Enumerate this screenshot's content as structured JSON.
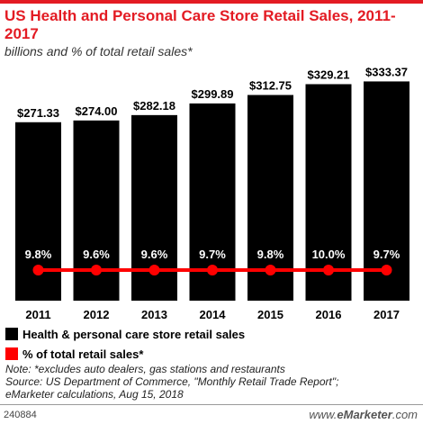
{
  "header": {
    "title": "US Health and Personal Care Store Retail Sales, 2011-2017",
    "subtitle": "billions and % of total retail sales*"
  },
  "chart_data": {
    "type": "bar",
    "categories": [
      "2011",
      "2012",
      "2013",
      "2014",
      "2015",
      "2016",
      "2017"
    ],
    "series": [
      {
        "name": "Health & personal care store retail sales",
        "type": "bar",
        "values": [
          271.33,
          274.0,
          282.18,
          299.89,
          312.75,
          329.21,
          333.37
        ],
        "labels": [
          "$271.33",
          "$274.00",
          "$282.18",
          "$299.89",
          "$312.75",
          "$329.21",
          "$333.37"
        ],
        "color": "#000000"
      },
      {
        "name": "% of total retail sales*",
        "type": "line",
        "values": [
          9.8,
          9.6,
          9.6,
          9.7,
          9.8,
          10.0,
          9.7
        ],
        "labels": [
          "9.8%",
          "9.6%",
          "9.6%",
          "9.7%",
          "9.8%",
          "10.0%",
          "9.7%"
        ],
        "color": "#ff0000"
      }
    ],
    "ylim": [
      0,
      360
    ],
    "grid": false,
    "legend_position": "bottom-left"
  },
  "legend": {
    "items": [
      {
        "label": "Health & personal care store retail sales",
        "color": "#000000"
      },
      {
        "label": "% of total retail sales*",
        "color": "#ff0000"
      }
    ]
  },
  "notes": {
    "line1": "Note: *excludes auto dealers, gas stations and restaurants",
    "line2": "Source: US Department of Commerce, \"Monthly Retail Trade Report\";",
    "line3": "eMarketer calculations, Aug 15, 2018"
  },
  "footer": {
    "chart_id": "240884",
    "brand_prefix": "www.",
    "brand_name": "eMarketer",
    "brand_suffix": ".com"
  }
}
